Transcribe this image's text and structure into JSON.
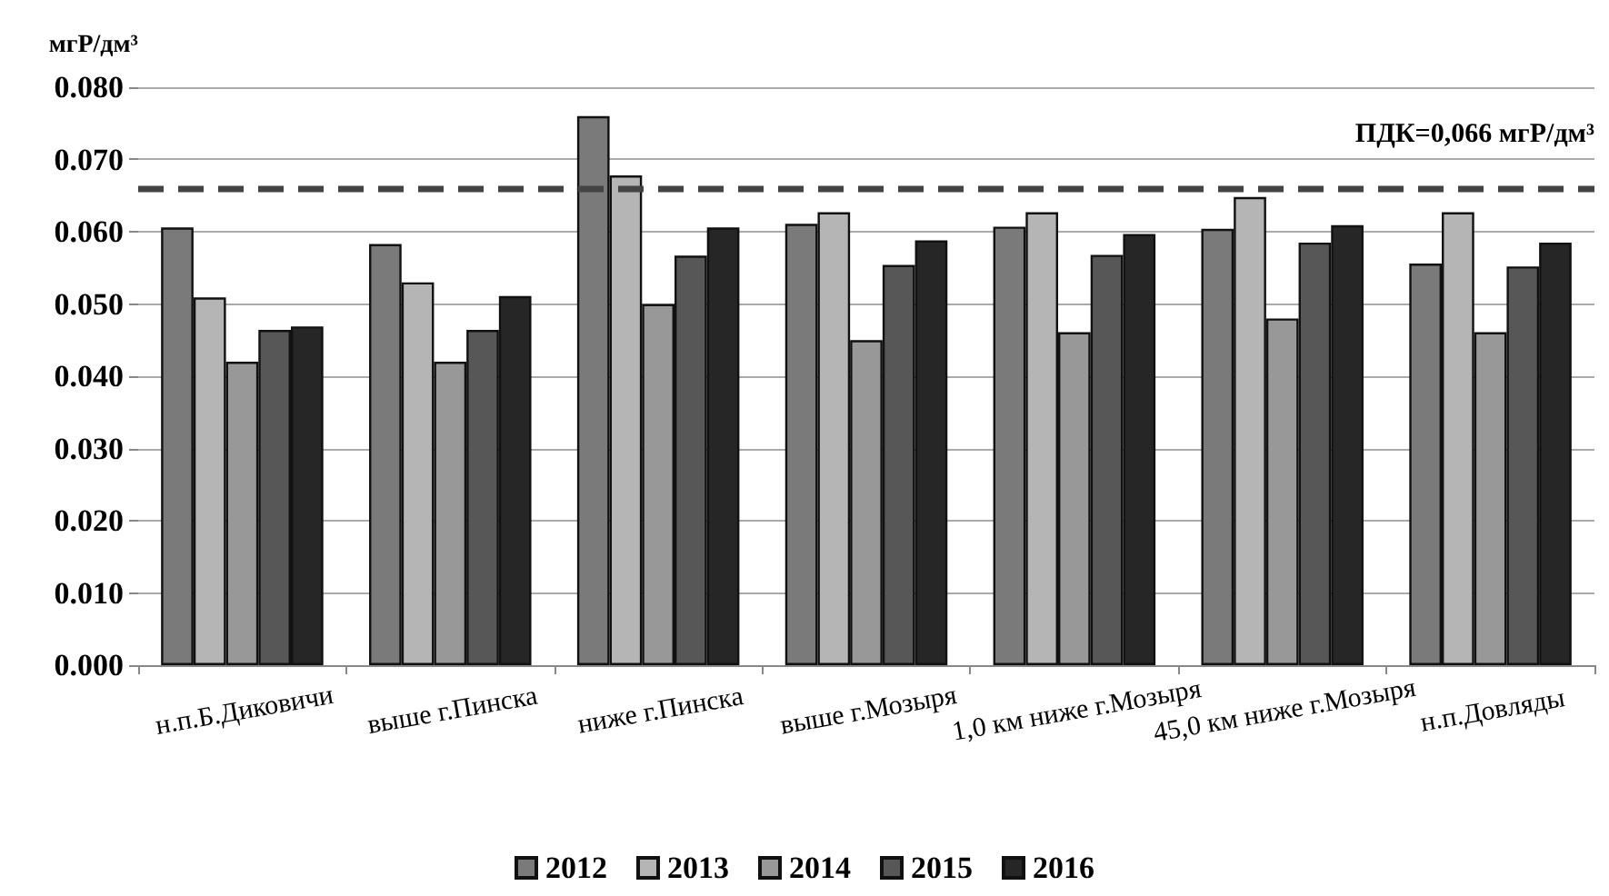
{
  "chart_data": {
    "type": "bar",
    "ylabel": "мгР/дм³",
    "categories": [
      "н.п.Б.Диковичи",
      "выше г.Пинска",
      "ниже г.Пинска",
      "выше г.Мозыря",
      "1,0 км ниже г.Мозыря",
      "45,0 км ниже г.Мозыря",
      "н.п.Довляды"
    ],
    "series": [
      {
        "name": "2012",
        "color": "#7a7a7a",
        "values": [
          0.0606,
          0.0583,
          0.076,
          0.0611,
          0.0607,
          0.0604,
          0.0556
        ]
      },
      {
        "name": "2013",
        "color": "#b5b5b5",
        "values": [
          0.0509,
          0.053,
          0.0678,
          0.0627,
          0.0627,
          0.0648,
          0.0627
        ]
      },
      {
        "name": "2014",
        "color": "#989898",
        "values": [
          0.042,
          0.042,
          0.05,
          0.045,
          0.0461,
          0.048,
          0.0461
        ]
      },
      {
        "name": "2015",
        "color": "#575757",
        "values": [
          0.0464,
          0.0464,
          0.0567,
          0.0554,
          0.0568,
          0.0585,
          0.0552
        ]
      },
      {
        "name": "2016",
        "color": "#262626",
        "values": [
          0.0469,
          0.0511,
          0.0606,
          0.0588,
          0.0597,
          0.0609,
          0.0585
        ]
      }
    ],
    "ylim": [
      0,
      0.08
    ],
    "yticks": [
      {
        "value": 0,
        "label": "0.000"
      },
      {
        "value": 0.01,
        "label": "0.010"
      },
      {
        "value": 0.02,
        "label": "0.020"
      },
      {
        "value": 0.03,
        "label": "0.030"
      },
      {
        "value": 0.04,
        "label": "0.040"
      },
      {
        "value": 0.05,
        "label": "0.050"
      },
      {
        "value": 0.06,
        "label": "0.060"
      },
      {
        "value": 0.07,
        "label": "0.070"
      },
      {
        "value": 0.08,
        "label": "0.080"
      }
    ],
    "ref_lines": [
      {
        "axis": "y",
        "value": 0.066,
        "label": "ПДК=0,066 мгР/дм³",
        "color": "#444444",
        "line_style": "dashed"
      }
    ],
    "grid": "y",
    "legend": "bottom"
  }
}
